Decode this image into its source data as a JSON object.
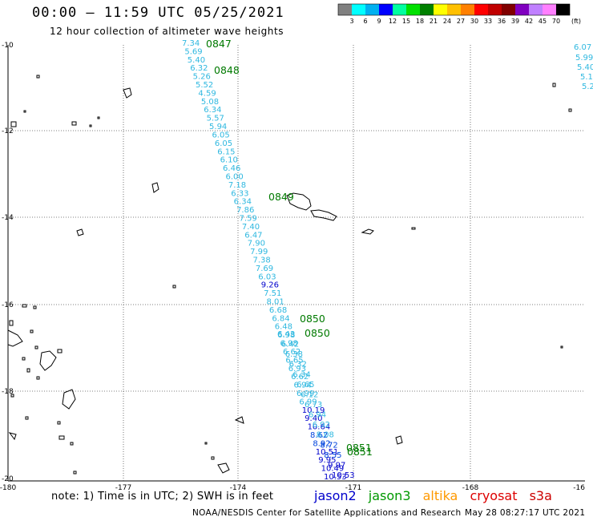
{
  "header": {
    "title": "00:00 – 11:59 UTC 05/25/2021",
    "subtitle": "12 hour collection of altimeter wave heights"
  },
  "colorbar": {
    "swatches": [
      "#808080",
      "#00ffff",
      "#00b0f0",
      "#0000ff",
      "#00ffa0",
      "#00e000",
      "#008000",
      "#ffff00",
      "#ffc000",
      "#ff8000",
      "#ff0000",
      "#c00000",
      "#800000",
      "#8000c0",
      "#c080ff",
      "#ff80ff",
      "#000000"
    ],
    "labels": [
      "3",
      "6",
      "9",
      "12",
      "15",
      "18",
      "21",
      "24",
      "27",
      "30",
      "33",
      "36",
      "39",
      "42",
      "45",
      "70"
    ],
    "unit": "(ft)"
  },
  "axes": {
    "lon_labels": [
      "-180",
      "-177",
      "-174",
      "-171",
      "-168",
      "-16"
    ],
    "lat_labels": [
      "-10",
      "-12",
      "-14",
      "-16",
      "-18",
      "-20"
    ]
  },
  "track_times": [
    "0847",
    "0848",
    "0849",
    "0850",
    "0850",
    "0851",
    "0851"
  ],
  "track_west_values": [
    "7.34",
    "5.69",
    "5.40",
    "6.32",
    "5.26",
    "5.52",
    "4.59",
    "5.08",
    "6.34",
    "5.57",
    "5.94",
    "6.05",
    "6.05",
    "6.15",
    "6.10",
    "6.46",
    "6.00",
    "7.18",
    "6.33",
    "6.34",
    "7.86",
    "7.59",
    "7.40",
    "6.47",
    "7.90",
    "7.99",
    "7.38",
    "7.69",
    "6.03",
    "9.26",
    "7.51",
    "8.01",
    "6.68",
    "6.84",
    "6.48",
    "6.98",
    "6.98",
    "6.62",
    "6.65",
    "6.93",
    "6.62",
    "6.94",
    "6.99",
    "6.99",
    "10.19",
    "9.40",
    "10.64",
    "8.62",
    "8.92",
    "10.51",
    "9.95",
    "10.49",
    "10.53"
  ],
  "track_east_values": [
    "6.43",
    "6.42",
    "6.38",
    "6.32",
    "6.34",
    "6.65",
    "6.12",
    "6.73",
    "6.94",
    "6.92",
    "8.08",
    "8.72",
    "8.55",
    "9.97",
    "10.53"
  ],
  "right_edge_values": [
    "6.07",
    "5.99",
    "5.40",
    "5.1",
    "5.2"
  ],
  "footer": {
    "note": "note: 1) Time is in UTC; 2) SWH is in feet",
    "satellites": [
      "jason2",
      "jason3",
      "altika",
      "cryosat",
      "s3a"
    ],
    "satellite_colors": [
      "#0000cc",
      "#009900",
      "#ff9900",
      "#dd0000",
      "#cc0000"
    ],
    "credit": "NOAA/NESDIS Center for Satellite Applications and Research",
    "timestamp": "May 28 08:27:17 UTC 2021"
  }
}
